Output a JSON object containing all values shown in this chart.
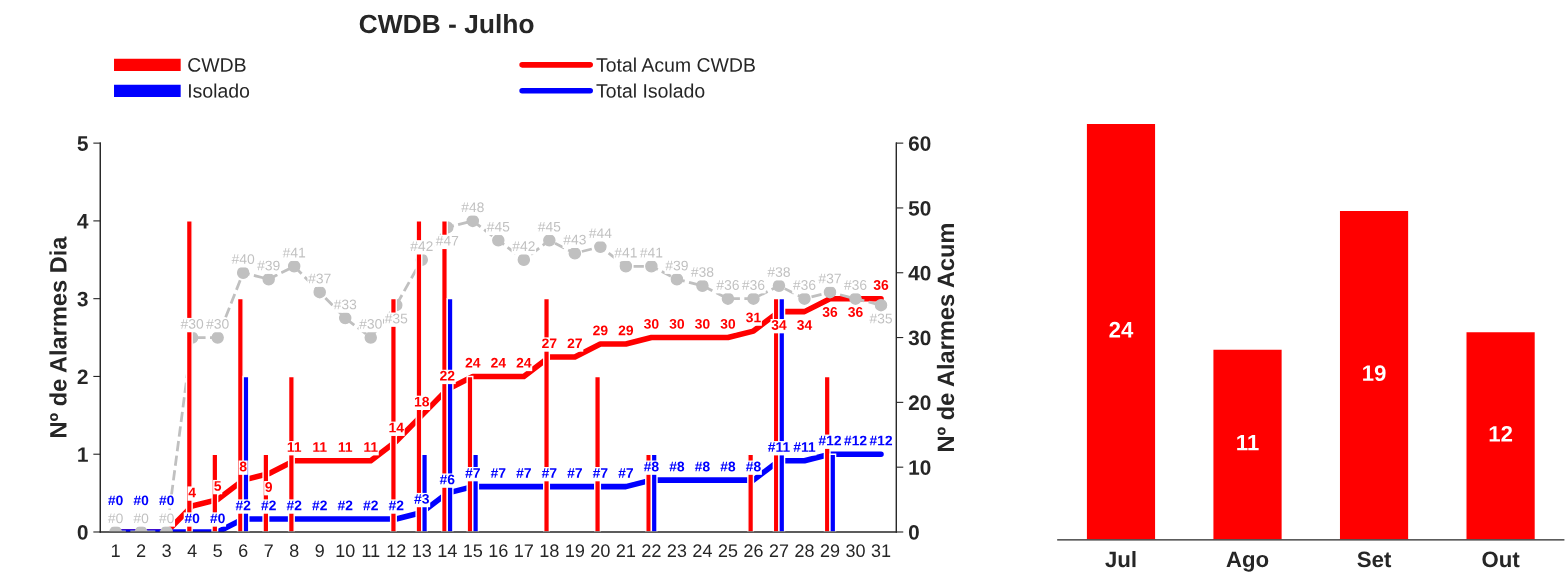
{
  "chart_data": [
    {
      "type": "bar",
      "title": "CWDB - Julho",
      "ylabel": "Nº de Alarmes Dia",
      "y2label": "Nº de Alarmes Acum",
      "categories": [
        "1",
        "2",
        "3",
        "4",
        "5",
        "6",
        "7",
        "8",
        "9",
        "10",
        "11",
        "12",
        "13",
        "14",
        "15",
        "16",
        "17",
        "18",
        "19",
        "20",
        "21",
        "22",
        "23",
        "24",
        "25",
        "26",
        "27",
        "28",
        "29",
        "30",
        "31"
      ],
      "ylim": [
        0,
        5
      ],
      "yticks": [
        0,
        1,
        2,
        3,
        4,
        5
      ],
      "y2lim": [
        0,
        60
      ],
      "y2ticks": [
        0,
        10,
        20,
        30,
        40,
        50,
        60
      ],
      "legend": "top",
      "grid": false,
      "series": [
        {
          "name": "CWDB",
          "type": "bar",
          "color": "#ff0000",
          "values": [
            0,
            0,
            0,
            4,
            1,
            3,
            1,
            2,
            0,
            0,
            0,
            3,
            4,
            4,
            2,
            0,
            0,
            3,
            0,
            2,
            0,
            1,
            0,
            0,
            0,
            1,
            3,
            0,
            2,
            0,
            0
          ]
        },
        {
          "name": "Isolado",
          "type": "bar",
          "color": "#0000ff",
          "values": [
            0,
            0,
            0,
            0,
            0,
            2,
            0,
            0,
            0,
            0,
            0,
            0,
            1,
            3,
            1,
            0,
            0,
            0,
            0,
            0,
            0,
            1,
            0,
            0,
            0,
            0,
            3,
            0,
            1,
            0,
            0
          ]
        },
        {
          "name": "Total Acum CWDB",
          "type": "line",
          "axis": "y2",
          "color": "#ff0000",
          "values": [
            0,
            0,
            0,
            4,
            5,
            8,
            9,
            11,
            11,
            11,
            11,
            14,
            18,
            22,
            24,
            24,
            24,
            27,
            27,
            29,
            29,
            30,
            30,
            30,
            30,
            31,
            34,
            34,
            36,
            36,
            36
          ],
          "value_labels": [
            null,
            null,
            null,
            "4",
            "5",
            "8",
            "9",
            "11",
            "11",
            "11",
            "11",
            "14",
            "18",
            "22",
            "24",
            "24",
            "24",
            "27",
            "27",
            "29",
            "29",
            "30",
            "30",
            "30",
            "30",
            "31",
            "34",
            "34",
            "36",
            "36",
            "36"
          ]
        },
        {
          "name": "Total Isolado",
          "type": "line",
          "axis": "y2",
          "color": "#0000ff",
          "values": [
            0,
            0,
            0,
            0,
            0,
            2,
            2,
            2,
            2,
            2,
            2,
            2,
            3,
            6,
            7,
            7,
            7,
            7,
            7,
            7,
            7,
            8,
            8,
            8,
            8,
            8,
            11,
            11,
            12,
            12,
            12
          ],
          "value_labels": [
            "#0",
            "#0",
            "#0",
            "#0",
            "#0",
            "#2",
            "#2",
            "#2",
            "#2",
            "#2",
            "#2",
            "#2",
            "#3",
            "#6",
            "#7",
            "#7",
            "#7",
            "#7",
            "#7",
            "#7",
            "#7",
            "#8",
            "#8",
            "#8",
            "#8",
            "#8",
            "#11",
            "#11",
            "#12",
            "#12",
            "#12"
          ]
        },
        {
          "type": "line",
          "axis": "y2",
          "color": "#c0c0c0",
          "marker": "circle",
          "line_style": "dashed",
          "values": [
            0,
            0,
            0,
            30,
            30,
            40,
            39,
            41,
            37,
            33,
            30,
            35,
            42,
            47,
            48,
            45,
            42,
            45,
            43,
            44,
            41,
            41,
            39,
            38,
            36,
            36,
            38,
            36,
            37,
            36,
            35
          ],
          "value_labels": [
            "#0",
            "#0",
            "#0",
            "#30",
            "#30",
            "#40",
            "#39",
            "#41",
            "#37",
            "#33",
            "#30",
            "#35",
            "#42",
            "#47",
            "#48",
            "#45",
            "#42",
            "#45",
            "#43",
            "#44",
            "#41",
            "#41",
            "#39",
            "#38",
            "#36",
            "#36",
            "#38",
            "#36",
            "#37",
            "#36",
            "#35"
          ]
        }
      ]
    },
    {
      "type": "bar",
      "categories": [
        "Jul",
        "Ago",
        "Set",
        "Out"
      ],
      "values": [
        24,
        11,
        19,
        12
      ],
      "color": "#ff0000",
      "data_labels": true,
      "tick_labels": "x"
    }
  ]
}
